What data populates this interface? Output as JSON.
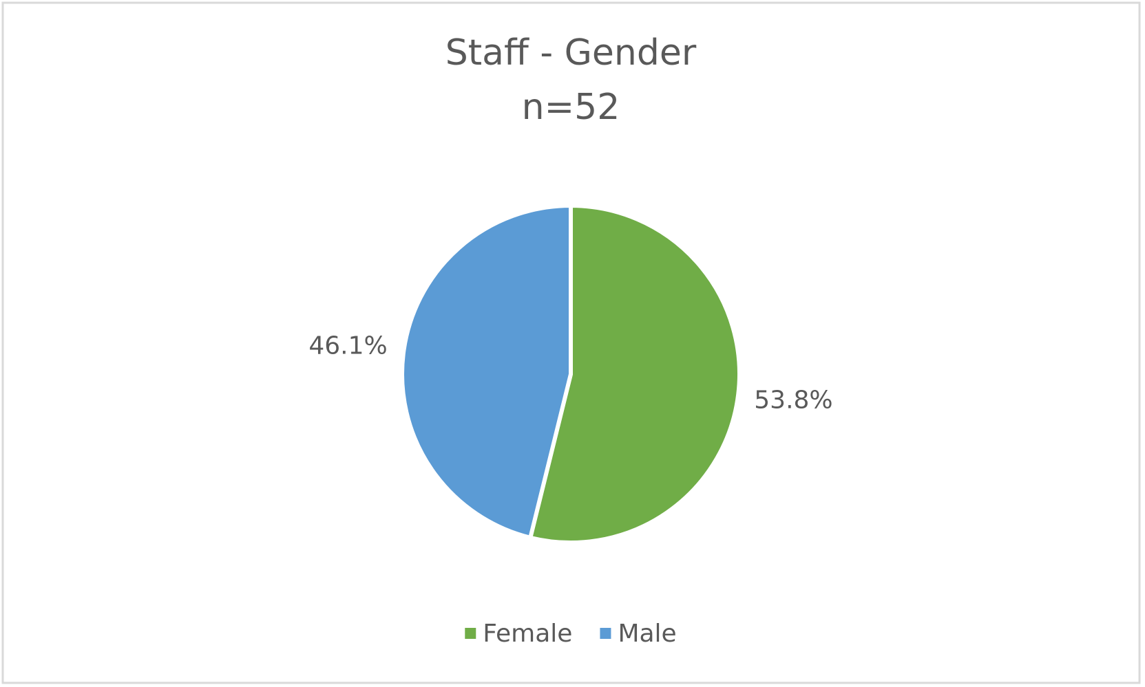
{
  "chart_data": {
    "type": "pie",
    "title": "Staff - Gender",
    "subtitle": "n=52",
    "categories": [
      "Female",
      "Male"
    ],
    "values": [
      53.8,
      46.1
    ],
    "value_labels": [
      "53.8%",
      "46.1%"
    ],
    "colors": [
      "#70ad47",
      "#5b9bd5"
    ],
    "start_angle": 0,
    "direction": "clockwise",
    "legend": "bottom"
  }
}
